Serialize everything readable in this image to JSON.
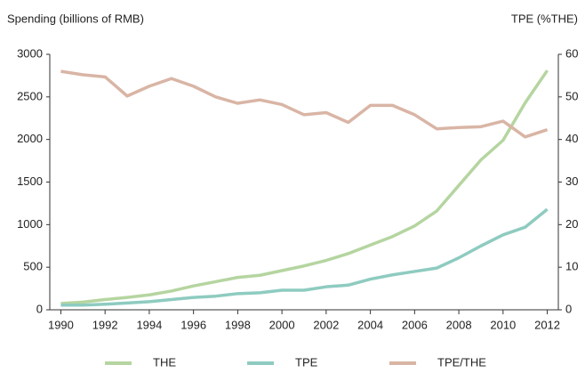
{
  "chart_data": {
    "type": "line",
    "y_label": "Spending (billions of RMB)",
    "y2_label": "TPE (%THE)",
    "x": [
      1990,
      1991,
      1992,
      1993,
      1994,
      1995,
      1996,
      1997,
      1998,
      1999,
      2000,
      2001,
      2002,
      2003,
      2004,
      2005,
      2006,
      2007,
      2008,
      2009,
      2010,
      2011,
      2012
    ],
    "xlim": [
      1989.5,
      2012.5
    ],
    "xticks": [
      1990,
      1992,
      1994,
      1996,
      1998,
      2000,
      2002,
      2004,
      2006,
      2008,
      2010,
      2012
    ],
    "ylim": [
      0,
      3000
    ],
    "yticks": [
      0,
      500,
      1000,
      1500,
      2000,
      2500,
      3000
    ],
    "y2lim": [
      0,
      60
    ],
    "y2ticks": [
      0,
      10,
      20,
      30,
      40,
      50,
      60
    ],
    "legend": "bottom",
    "series": [
      {
        "name": "THE",
        "color": "#b5d5a0",
        "values": [
          75,
          90,
          120,
          145,
          175,
          220,
          280,
          330,
          380,
          405,
          460,
          515,
          580,
          660,
          760,
          860,
          985,
          1160,
          1460,
          1760,
          1990,
          2430,
          2810
        ]
      },
      {
        "name": "TPE",
        "color": "#8ecbc0",
        "values": [
          55,
          55,
          65,
          80,
          95,
          120,
          145,
          160,
          190,
          200,
          230,
          230,
          270,
          290,
          360,
          410,
          450,
          490,
          610,
          750,
          880,
          970,
          1180
        ]
      },
      {
        "name": "TPE/THE",
        "color": "#d9b5a5",
        "axis": "y2",
        "values": [
          56,
          55.2,
          54.7,
          50.2,
          52.5,
          54.3,
          52.5,
          50,
          48.5,
          49.3,
          48.2,
          45.8,
          46.3,
          44,
          48,
          48,
          45.8,
          42.5,
          42.8,
          43,
          44.3,
          40.6,
          42.3
        ]
      }
    ]
  }
}
